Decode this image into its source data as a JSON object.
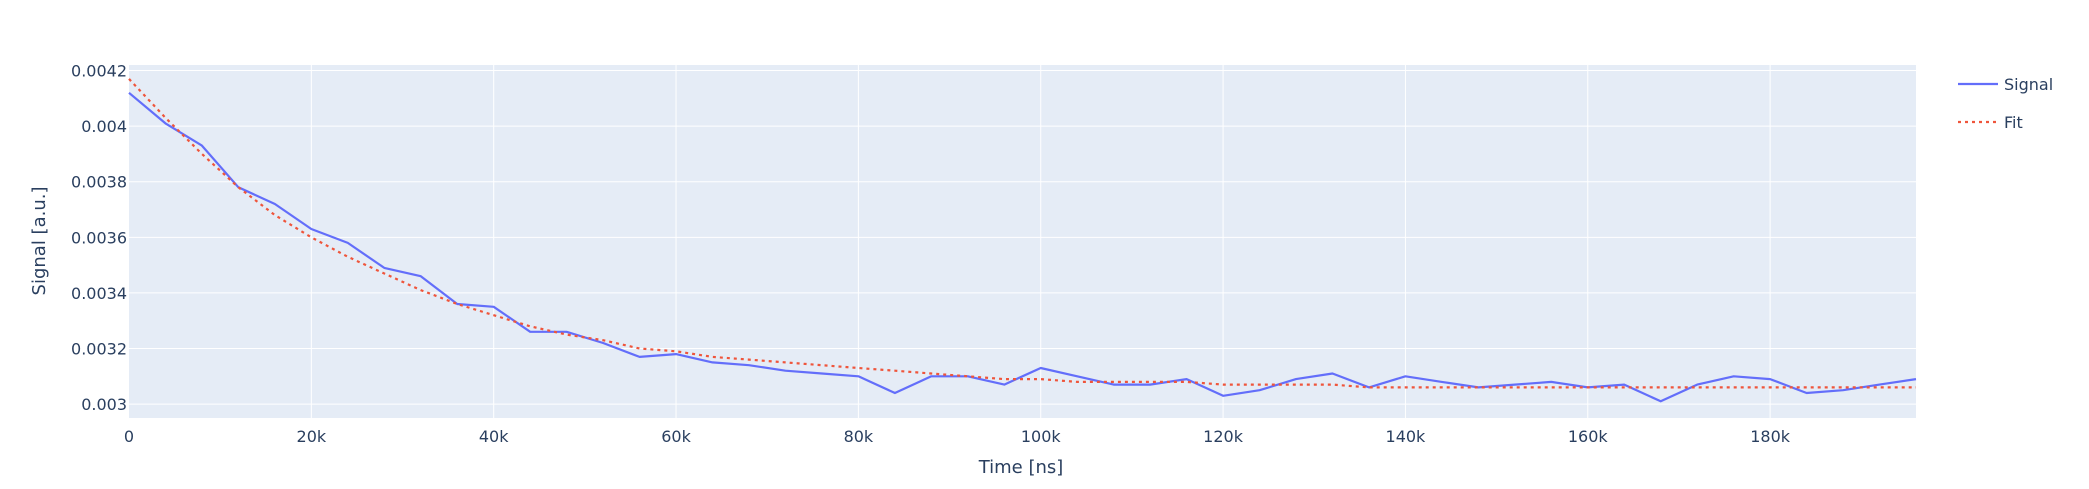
{
  "chart_data": {
    "type": "line",
    "xlabel": "Time [ns]",
    "ylabel": "Signal [a.u.]",
    "xlim": [
      0,
      196000
    ],
    "ylim": [
      0.00295,
      0.00422
    ],
    "x_ticks": [
      {
        "value": 0,
        "label": "0"
      },
      {
        "value": 20000,
        "label": "20k"
      },
      {
        "value": 40000,
        "label": "40k"
      },
      {
        "value": 60000,
        "label": "60k"
      },
      {
        "value": 80000,
        "label": "80k"
      },
      {
        "value": 100000,
        "label": "100k"
      },
      {
        "value": 120000,
        "label": "120k"
      },
      {
        "value": 140000,
        "label": "140k"
      },
      {
        "value": 160000,
        "label": "160k"
      },
      {
        "value": 180000,
        "label": "180k"
      }
    ],
    "y_ticks": [
      {
        "value": 0.003,
        "label": "0.003"
      },
      {
        "value": 0.0032,
        "label": "0.0032"
      },
      {
        "value": 0.0034,
        "label": "0.0034"
      },
      {
        "value": 0.0036,
        "label": "0.0036"
      },
      {
        "value": 0.0038,
        "label": "0.0038"
      },
      {
        "value": 0.004,
        "label": "0.004"
      },
      {
        "value": 0.0042,
        "label": "0.0042"
      }
    ],
    "grid": true,
    "legend_position": "top-right outside",
    "series": [
      {
        "name": "Signal",
        "color": "#636efa",
        "dash": "solid",
        "x": [
          0,
          4000,
          8000,
          12000,
          16000,
          20000,
          24000,
          28000,
          32000,
          36000,
          40000,
          44000,
          48000,
          52000,
          56000,
          60000,
          64000,
          68000,
          72000,
          76000,
          80000,
          84000,
          88000,
          92000,
          96000,
          100000,
          104000,
          108000,
          112000,
          116000,
          120000,
          124000,
          128000,
          132000,
          136000,
          140000,
          144000,
          148000,
          152000,
          156000,
          160000,
          164000,
          168000,
          172000,
          176000,
          180000,
          184000,
          188000,
          192000,
          196000
        ],
        "y": [
          0.00412,
          0.00401,
          0.00393,
          0.00378,
          0.00372,
          0.00363,
          0.00358,
          0.00349,
          0.00346,
          0.00336,
          0.00335,
          0.00326,
          0.00326,
          0.00322,
          0.00317,
          0.00318,
          0.00315,
          0.00314,
          0.00312,
          0.00311,
          0.0031,
          0.00304,
          0.0031,
          0.0031,
          0.00307,
          0.00313,
          0.0031,
          0.00307,
          0.00307,
          0.00309,
          0.00303,
          0.00305,
          0.00309,
          0.00311,
          0.00306,
          0.0031,
          0.00308,
          0.00306,
          0.00307,
          0.00308,
          0.00306,
          0.00307,
          0.00301,
          0.00307,
          0.0031,
          0.00309,
          0.00304,
          0.00305,
          0.00307,
          0.00309
        ]
      },
      {
        "name": "Fit",
        "color": "#ef553b",
        "dash": "dot",
        "x": [
          0,
          4000,
          8000,
          12000,
          16000,
          20000,
          24000,
          28000,
          32000,
          36000,
          40000,
          44000,
          48000,
          52000,
          56000,
          60000,
          64000,
          68000,
          72000,
          76000,
          80000,
          84000,
          88000,
          92000,
          96000,
          100000,
          104000,
          108000,
          112000,
          116000,
          120000,
          124000,
          128000,
          132000,
          136000,
          140000,
          144000,
          148000,
          152000,
          156000,
          160000,
          164000,
          168000,
          172000,
          176000,
          180000,
          184000,
          188000,
          192000,
          196000
        ],
        "y": [
          0.00417,
          0.00403,
          0.0039,
          0.00378,
          0.00368,
          0.0036,
          0.00353,
          0.00347,
          0.00341,
          0.00336,
          0.00332,
          0.00328,
          0.00325,
          0.00323,
          0.0032,
          0.00319,
          0.00317,
          0.00316,
          0.00315,
          0.00314,
          0.00313,
          0.00312,
          0.00311,
          0.0031,
          0.00309,
          0.00309,
          0.00308,
          0.00308,
          0.00308,
          0.00308,
          0.00307,
          0.00307,
          0.00307,
          0.00307,
          0.00306,
          0.00306,
          0.00306,
          0.00306,
          0.00306,
          0.00306,
          0.00306,
          0.00306,
          0.00306,
          0.00306,
          0.00306,
          0.00306,
          0.00306,
          0.00306,
          0.00306,
          0.00306
        ]
      }
    ]
  }
}
